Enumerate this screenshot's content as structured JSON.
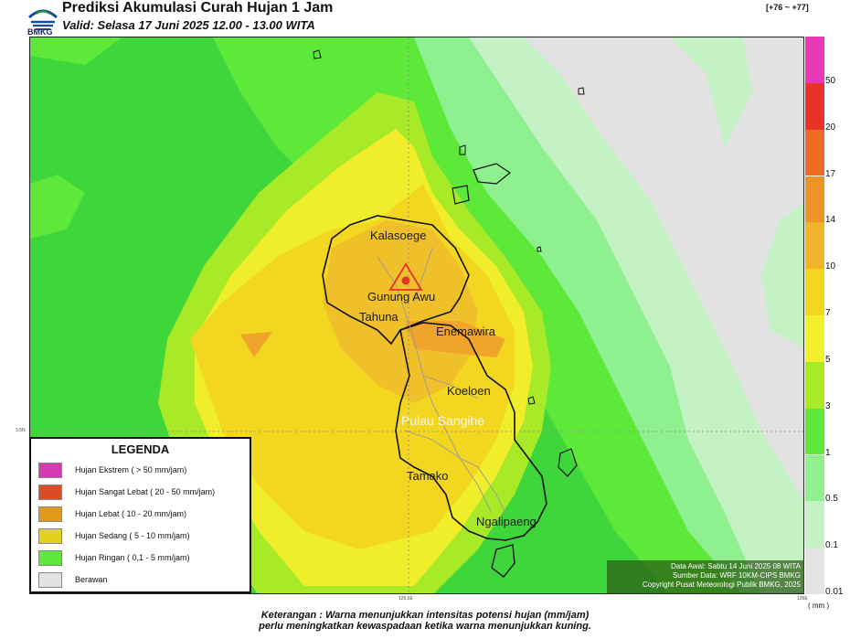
{
  "header": {
    "title": "Prediksi Akumulasi Curah Hujan 1 Jam",
    "valid": "Valid: Selasa 17 Juni 2025 12.00 - 13.00 WITA",
    "model_id": "[+76 ~ +77]",
    "logo_text": "BMKG",
    "logo_icon": "bmkg-logo-icon"
  },
  "places": [
    {
      "label": "Kalasoege"
    },
    {
      "label": "Gunung Awu"
    },
    {
      "label": "Tahuna"
    },
    {
      "label": "Enemawira"
    },
    {
      "label": "Koeloen"
    },
    {
      "label": "Pulau Sangihe"
    },
    {
      "label": "Tamako"
    },
    {
      "label": "Ngalipaeng"
    }
  ],
  "volcano_icon": "volcano-triangle-icon",
  "axes": {
    "lat_label": "3.5N",
    "lon_labels": [
      "125.5E",
      "126E"
    ]
  },
  "legend": {
    "title": "LEGENDA",
    "items": [
      {
        "label": "Hujan Ekstrem ( > 50 mm/jam)",
        "color": "#d63ab0"
      },
      {
        "label": "Hujan Sangat Lebat ( 20 - 50 mm/jam)",
        "color": "#dd4a26"
      },
      {
        "label": "Hujan Lebat ( 10 - 20 mm/jam)",
        "color": "#e09a1a"
      },
      {
        "label": "Hujan Sedang ( 5 - 10 mm/jam)",
        "color": "#e3d21c"
      },
      {
        "label": "Hujan Ringan ( 0,1 - 5 mm/jam)",
        "color": "#5ee83a"
      },
      {
        "label": "Berawan",
        "color": "#e2e2e2"
      }
    ]
  },
  "info": {
    "line1": "Data Awal: Sabtu 14 Juni 2025 08 WITA",
    "line2": "Sumber Data: WRF 10KM-CIPS BMKG",
    "line3": "Copyright Pusat Meteorologi Publik BMKG, 2025"
  },
  "colorbar": {
    "labels": [
      "50",
      "20",
      "17",
      "14",
      "10",
      "7",
      "5",
      "3",
      "1",
      "0.5",
      "0.1",
      "0.01"
    ],
    "colors": [
      "#e83ab4",
      "#e8322a",
      "#ef6a22",
      "#f0922a",
      "#f0b42a",
      "#f2d620",
      "#f2f02a",
      "#a8ea28",
      "#5ee83a",
      "#90f090",
      "#c4f2c4",
      "#e4e4e4"
    ],
    "unit": "( mm )"
  },
  "footer": {
    "line1": "Keterangan : Warna menunjukkan intensitas potensi hujan (mm/jam)",
    "line2": "perlu meningkatkan kewaspadaan ketika warna menunjukkan kuning."
  }
}
